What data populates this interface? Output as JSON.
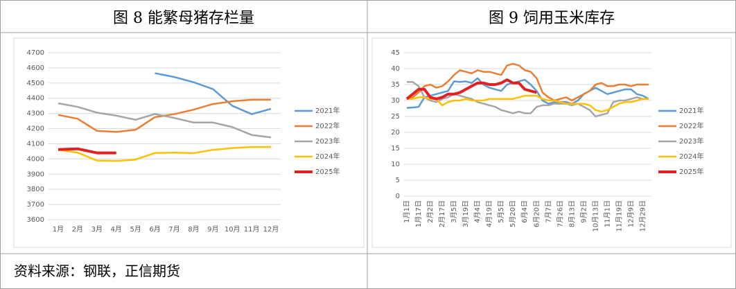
{
  "chart_data": [
    {
      "type": "line",
      "title": "图 8 能繁母猪存栏量",
      "categories": [
        "1月",
        "2月",
        "3月",
        "4月",
        "5月",
        "6月",
        "7月",
        "8月",
        "9月",
        "10月",
        "11月",
        "12月"
      ],
      "ylim": [
        3600,
        4700
      ],
      "yticks": [
        3600,
        3700,
        3800,
        3900,
        4000,
        4100,
        4200,
        4300,
        4400,
        4500,
        4600,
        4700
      ],
      "grid": true,
      "legend": "right",
      "series": [
        {
          "name": "2021年",
          "color": "#5b9bd5",
          "values": [
            null,
            null,
            null,
            null,
            null,
            4565,
            4540,
            4505,
            4460,
            4350,
            4295,
            4330
          ]
        },
        {
          "name": "2022年",
          "color": "#ed7d31",
          "values": [
            4290,
            4265,
            4185,
            4178,
            4192,
            4275,
            4295,
            4325,
            4362,
            4380,
            4390,
            4390
          ]
        },
        {
          "name": "2023年",
          "color": "#a5a5a5",
          "values": [
            4367,
            4343,
            4305,
            4285,
            4258,
            4296,
            4270,
            4240,
            4240,
            4210,
            4158,
            4142
          ]
        },
        {
          "name": "2024年",
          "color": "#ffc000",
          "values": [
            4060,
            4042,
            3990,
            3986,
            3996,
            4039,
            4042,
            4038,
            4060,
            4072,
            4079,
            4079
          ]
        },
        {
          "name": "2025年",
          "color": "#e32020",
          "values": [
            4062,
            4067,
            4040,
            4040,
            null,
            null,
            null,
            null,
            null,
            null,
            null,
            null
          ]
        }
      ]
    },
    {
      "type": "line",
      "title": "图 9 饲用玉米库存",
      "categories": [
        "1月1日",
        null,
        "1月17日",
        null,
        "2月2日",
        null,
        "2月17日",
        null,
        "3月5日",
        null,
        "3月19日",
        null,
        "4月4日",
        null,
        "4月19日",
        null,
        "5月5日",
        null,
        "5月20日",
        null,
        "6月4日",
        null,
        "6月20日",
        null,
        "7月7日",
        null,
        "7月26日",
        null,
        "8月13日",
        null,
        "9月2日",
        null,
        "10月13日",
        null,
        "11月1日",
        null,
        "11月19日",
        null,
        "12月9日",
        null,
        "12月29日",
        null
      ],
      "ylim": [
        0,
        45
      ],
      "yticks": [
        0,
        5,
        10,
        15,
        20,
        25,
        30,
        35,
        40,
        45
      ],
      "grid": true,
      "legend": "right",
      "series": [
        {
          "name": "2021年",
          "color": "#5b9bd5",
          "values": [
            27.7,
            27.8,
            28,
            31,
            31.5,
            32,
            32.5,
            33,
            36,
            35.8,
            36,
            35.5,
            37,
            35,
            34,
            33.5,
            33,
            35,
            35.5,
            36,
            36.5,
            35,
            33,
            30,
            29,
            29.5,
            29.5,
            29.5,
            29,
            30,
            32,
            33,
            34,
            33,
            32,
            32.5,
            33,
            33.5,
            33.5,
            32,
            31.5,
            30.5
          ]
        },
        {
          "name": "2022年",
          "color": "#ed7d31",
          "values": [
            30.5,
            31,
            32.5,
            34.5,
            35,
            34,
            34.5,
            36,
            38,
            39.5,
            39,
            38.5,
            39.5,
            39,
            39,
            38.5,
            38,
            41,
            41.5,
            41,
            39.5,
            39,
            37,
            32.5,
            31,
            30,
            30.5,
            31,
            30,
            31,
            32,
            33,
            35,
            35.5,
            34.5,
            34.5,
            35,
            35,
            34.5,
            35,
            35,
            35
          ]
        },
        {
          "name": "2023年",
          "color": "#a5a5a5",
          "values": [
            35.8,
            35.8,
            34.5,
            31,
            30,
            29.5,
            30.5,
            31,
            32,
            31.5,
            31,
            30.5,
            29.5,
            29,
            28.5,
            28,
            27,
            26.5,
            26,
            26.5,
            26,
            26,
            28,
            28.5,
            28.5,
            29,
            29,
            29,
            28.5,
            29,
            28,
            27,
            25,
            25.5,
            26,
            29.5,
            30,
            30,
            30.5,
            31,
            30.5,
            30.5
          ]
        },
        {
          "name": "2024年",
          "color": "#ffc000",
          "values": [
            30.5,
            30.5,
            31,
            31,
            30.5,
            30.5,
            28.5,
            29.5,
            30,
            30,
            30.5,
            30,
            30,
            30,
            30.5,
            30.5,
            30.5,
            30.5,
            30.5,
            31,
            31.5,
            31.5,
            31.5,
            30.5,
            30,
            30,
            29.5,
            29,
            29,
            29,
            29,
            28.5,
            27,
            26.5,
            27,
            28,
            29,
            29.5,
            29.5,
            30,
            30.5,
            30.5
          ]
        },
        {
          "name": "2025年",
          "color": "#e32020",
          "values": [
            30.5,
            32,
            33.5,
            33.5,
            31,
            30.5,
            31,
            32,
            32,
            32.5,
            33.5,
            34.5,
            35.5,
            35.5,
            35,
            35,
            35.5,
            36.5,
            35.5,
            35.5,
            33.5,
            33,
            32.5,
            null,
            null,
            null,
            null,
            null,
            null,
            null,
            null,
            null,
            null,
            null,
            null,
            null,
            null,
            null,
            null,
            null,
            null,
            null
          ]
        }
      ]
    }
  ],
  "source": "资料来源：钢联，正信期货"
}
